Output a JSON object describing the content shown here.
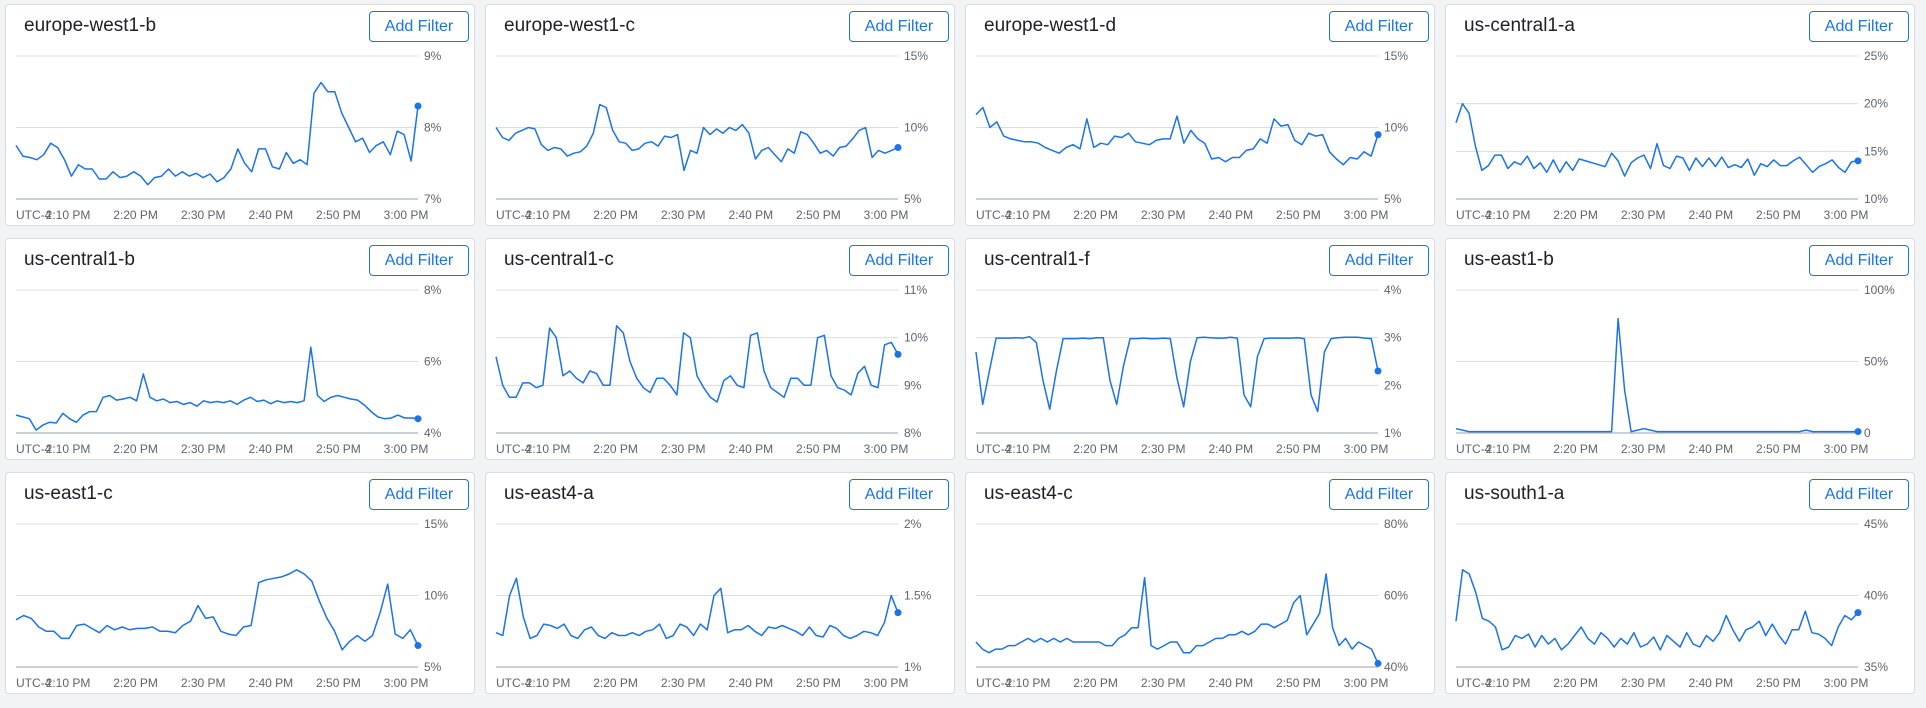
{
  "colors": {
    "series": "#1a73e8",
    "grid": "#dadce0",
    "axis": "#9aa0a6",
    "label": "#5f6368"
  },
  "filter_button_label": "Add Filter",
  "timezone_label": "UTC-4",
  "chart_data": [
    {
      "type": "line",
      "title": "europe-west1-b",
      "y_ticks": [
        "9%",
        "8%",
        "7%"
      ],
      "ylim": [
        7,
        9
      ],
      "x_ticks": [
        "2:10 PM",
        "2:20 PM",
        "2:30 PM",
        "2:40 PM",
        "2:50 PM",
        "3:00 PM"
      ],
      "values": [
        7.75,
        7.6,
        7.58,
        7.55,
        7.62,
        7.78,
        7.72,
        7.55,
        7.32,
        7.48,
        7.42,
        7.42,
        7.28,
        7.28,
        7.38,
        7.3,
        7.32,
        7.38,
        7.32,
        7.2,
        7.3,
        7.32,
        7.42,
        7.32,
        7.38,
        7.32,
        7.36,
        7.3,
        7.35,
        7.24,
        7.3,
        7.42,
        7.7,
        7.5,
        7.38,
        7.7,
        7.7,
        7.45,
        7.42,
        7.65,
        7.5,
        7.55,
        7.48,
        8.48,
        8.63,
        8.5,
        8.5,
        8.2,
        8.0,
        7.8,
        7.85,
        7.65,
        7.75,
        7.8,
        7.62,
        7.95,
        7.9,
        7.53,
        8.3
      ]
    },
    {
      "type": "line",
      "title": "europe-west1-c",
      "y_ticks": [
        "15%",
        "10%",
        "5%"
      ],
      "ylim": [
        5,
        15
      ],
      "x_ticks": [
        "2:10 PM",
        "2:20 PM",
        "2:30 PM",
        "2:40 PM",
        "2:50 PM",
        "3:00 PM"
      ],
      "values": [
        10.0,
        9.3,
        9.1,
        9.6,
        9.8,
        10.0,
        9.9,
        8.8,
        8.4,
        8.6,
        8.5,
        8.0,
        8.2,
        8.3,
        8.7,
        9.6,
        11.6,
        11.4,
        9.8,
        9.0,
        8.9,
        8.4,
        8.5,
        8.9,
        9.0,
        8.7,
        9.4,
        9.3,
        9.5,
        7.0,
        8.4,
        8.2,
        10.0,
        9.5,
        9.9,
        9.6,
        10.0,
        9.8,
        10.2,
        9.6,
        7.8,
        8.4,
        8.6,
        8.1,
        7.6,
        8.5,
        8.2,
        9.7,
        9.5,
        8.9,
        8.2,
        8.4,
        8.0,
        8.6,
        8.7,
        9.2,
        9.8,
        10.0,
        7.9,
        8.4,
        8.2,
        8.4,
        8.6
      ]
    },
    {
      "type": "line",
      "title": "europe-west1-d",
      "y_ticks": [
        "15%",
        "10%",
        "5%"
      ],
      "ylim": [
        5,
        15
      ],
      "x_ticks": [
        "2:10 PM",
        "2:20 PM",
        "2:30 PM",
        "2:40 PM",
        "2:50 PM",
        "3:00 PM"
      ],
      "values": [
        10.9,
        11.4,
        10.0,
        10.4,
        9.4,
        9.2,
        9.1,
        9.0,
        9.0,
        8.9,
        8.6,
        8.4,
        8.2,
        8.6,
        8.8,
        8.5,
        10.6,
        8.6,
        8.9,
        8.8,
        9.4,
        9.3,
        9.6,
        9.0,
        8.9,
        8.8,
        9.1,
        9.2,
        9.2,
        10.8,
        8.9,
        9.8,
        9.2,
        8.9,
        7.8,
        7.9,
        7.6,
        7.9,
        7.9,
        8.4,
        8.5,
        9.2,
        8.9,
        10.6,
        10.1,
        10.2,
        9.1,
        8.8,
        9.6,
        9.4,
        9.5,
        8.3,
        7.8,
        7.4,
        7.9,
        7.8,
        8.3,
        8.0,
        9.5
      ]
    },
    {
      "type": "line",
      "title": "us-central1-a",
      "y_ticks": [
        "25%",
        "20%",
        "15%",
        "10%"
      ],
      "ylim": [
        10,
        25
      ],
      "x_ticks": [
        "2:10 PM",
        "2:20 PM",
        "2:30 PM",
        "2:40 PM",
        "2:50 PM",
        "3:00 PM"
      ],
      "values": [
        18.0,
        20.0,
        19.0,
        15.5,
        13.0,
        13.5,
        14.6,
        14.6,
        13.2,
        13.9,
        13.6,
        14.5,
        13.2,
        13.8,
        12.8,
        14.1,
        12.8,
        13.9,
        13.0,
        14.2,
        14.0,
        13.8,
        13.6,
        13.4,
        14.8,
        14.0,
        12.4,
        13.8,
        14.3,
        14.6,
        13.2,
        15.8,
        13.5,
        13.2,
        14.5,
        14.3,
        13.0,
        14.3,
        13.4,
        14.3,
        13.4,
        14.4,
        13.3,
        13.6,
        13.3,
        14.2,
        12.5,
        13.7,
        13.4,
        14.1,
        13.5,
        13.5,
        14.0,
        14.4,
        13.6,
        12.8,
        13.4,
        13.7,
        14.1,
        13.3,
        12.8,
        13.9,
        14.0
      ]
    },
    {
      "type": "line",
      "title": "us-central1-b",
      "y_ticks": [
        "8%",
        "6%",
        "4%"
      ],
      "ylim": [
        4,
        8
      ],
      "x_ticks": [
        "2:10 PM",
        "2:20 PM",
        "2:30 PM",
        "2:40 PM",
        "2:50 PM",
        "3:00 PM"
      ],
      "values": [
        4.5,
        4.45,
        4.4,
        4.08,
        4.22,
        4.3,
        4.28,
        4.55,
        4.4,
        4.3,
        4.5,
        4.6,
        4.6,
        5.0,
        5.05,
        4.92,
        4.95,
        5.0,
        4.9,
        5.65,
        5.0,
        4.9,
        4.95,
        4.85,
        4.88,
        4.8,
        4.85,
        4.75,
        4.9,
        4.85,
        4.88,
        4.85,
        4.9,
        4.8,
        4.92,
        5.0,
        4.88,
        4.92,
        4.82,
        4.9,
        4.85,
        4.88,
        4.85,
        4.9,
        6.4,
        5.05,
        4.88,
        5.0,
        5.05,
        5.0,
        4.95,
        4.92,
        4.78,
        4.6,
        4.45,
        4.4,
        4.42,
        4.5,
        4.42,
        4.42,
        4.4
      ]
    },
    {
      "type": "line",
      "title": "us-central1-c",
      "y_ticks": [
        "11%",
        "10%",
        "9%",
        "8%"
      ],
      "ylim": [
        8,
        11
      ],
      "x_ticks": [
        "2:10 PM",
        "2:20 PM",
        "2:30 PM",
        "2:40 PM",
        "2:50 PM",
        "3:00 PM"
      ],
      "values": [
        9.6,
        9.0,
        8.75,
        8.75,
        9.05,
        9.05,
        8.95,
        9.0,
        10.2,
        10.0,
        9.2,
        9.3,
        9.15,
        9.05,
        9.3,
        9.25,
        9.0,
        9.0,
        10.25,
        10.1,
        9.5,
        9.15,
        8.95,
        8.85,
        9.15,
        9.15,
        9.0,
        8.8,
        10.1,
        10.0,
        9.2,
        8.95,
        8.75,
        8.65,
        9.1,
        9.2,
        9.0,
        8.95,
        10.05,
        10.1,
        9.3,
        8.95,
        8.85,
        8.75,
        9.15,
        9.15,
        9.0,
        9.0,
        10.0,
        10.05,
        9.2,
        8.95,
        8.9,
        8.8,
        9.25,
        9.4,
        9.0,
        8.95,
        9.85,
        9.9,
        9.65
      ]
    },
    {
      "type": "line",
      "title": "us-central1-f",
      "y_ticks": [
        "4%",
        "3%",
        "2%",
        "1%"
      ],
      "ylim": [
        1,
        4
      ],
      "x_ticks": [
        "2:10 PM",
        "2:20 PM",
        "2:30 PM",
        "2:40 PM",
        "2:50 PM",
        "3:00 PM"
      ],
      "values": [
        2.7,
        1.6,
        2.3,
        2.99,
        2.99,
        2.99,
        3.0,
        2.99,
        3.02,
        2.9,
        2.1,
        1.5,
        2.3,
        2.98,
        2.98,
        2.98,
        2.99,
        2.98,
        3.0,
        3.0,
        2.1,
        1.6,
        2.4,
        2.98,
        2.98,
        2.99,
        2.98,
        2.98,
        2.99,
        2.98,
        2.15,
        1.55,
        2.5,
        3.0,
        3.01,
        3.0,
        2.99,
        2.99,
        3.01,
        2.99,
        1.8,
        1.55,
        2.6,
        2.98,
        2.99,
        2.99,
        2.99,
        2.99,
        3.0,
        2.98,
        1.8,
        1.45,
        2.7,
        2.98,
        3.0,
        3.01,
        3.01,
        3.01,
        2.99,
        2.98,
        2.3
      ]
    },
    {
      "type": "line",
      "title": "us-east1-b",
      "y_ticks": [
        "100%",
        "50%",
        "0"
      ],
      "ylim": [
        0,
        100
      ],
      "x_ticks": [
        "2:10 PM",
        "2:20 PM",
        "2:30 PM",
        "2:40 PM",
        "2:50 PM",
        "3:00 PM"
      ],
      "values": [
        3,
        2,
        1,
        1,
        1,
        1,
        1,
        1,
        1,
        1,
        1,
        1,
        1,
        1,
        1,
        1,
        1,
        1,
        1,
        1,
        1,
        1,
        1,
        1,
        1,
        80,
        30,
        1,
        2,
        3,
        2,
        1,
        1,
        1,
        1,
        1,
        1,
        1,
        1,
        1,
        1,
        1,
        1,
        1,
        1,
        1,
        1,
        1,
        1,
        1,
        1,
        1,
        1,
        1,
        2,
        1,
        1,
        1,
        1,
        1,
        1,
        1,
        1
      ]
    },
    {
      "type": "line",
      "title": "us-east1-c",
      "y_ticks": [
        "15%",
        "10%",
        "5%"
      ],
      "ylim": [
        5,
        15
      ],
      "x_ticks": [
        "2:10 PM",
        "2:20 PM",
        "2:30 PM",
        "2:40 PM",
        "2:50 PM",
        "3:00 PM"
      ],
      "values": [
        8.3,
        8.6,
        8.4,
        7.8,
        7.5,
        7.5,
        7.0,
        7.0,
        7.9,
        8.0,
        7.7,
        7.4,
        7.9,
        7.6,
        7.8,
        7.6,
        7.7,
        7.7,
        7.8,
        7.5,
        7.5,
        7.4,
        7.9,
        8.2,
        9.3,
        8.4,
        8.5,
        7.5,
        7.3,
        7.2,
        7.8,
        7.9,
        10.9,
        11.1,
        11.2,
        11.3,
        11.5,
        11.8,
        11.5,
        11.0,
        9.6,
        8.4,
        7.5,
        6.2,
        6.8,
        7.2,
        6.8,
        7.2,
        8.8,
        10.8,
        7.3,
        7.0,
        7.6,
        6.5
      ]
    },
    {
      "type": "line",
      "title": "us-east4-a",
      "y_ticks": [
        "2%",
        "1.5%",
        "1%"
      ],
      "ylim": [
        1,
        2
      ],
      "x_ticks": [
        "2:10 PM",
        "2:20 PM",
        "2:30 PM",
        "2:40 PM",
        "2:50 PM",
        "3:00 PM"
      ],
      "values": [
        1.24,
        1.22,
        1.5,
        1.62,
        1.35,
        1.2,
        1.22,
        1.3,
        1.29,
        1.27,
        1.3,
        1.22,
        1.2,
        1.26,
        1.28,
        1.22,
        1.2,
        1.24,
        1.22,
        1.22,
        1.24,
        1.22,
        1.25,
        1.26,
        1.3,
        1.2,
        1.22,
        1.3,
        1.28,
        1.22,
        1.3,
        1.26,
        1.5,
        1.55,
        1.24,
        1.26,
        1.26,
        1.29,
        1.25,
        1.22,
        1.28,
        1.27,
        1.29,
        1.27,
        1.25,
        1.22,
        1.28,
        1.22,
        1.21,
        1.29,
        1.27,
        1.22,
        1.2,
        1.22,
        1.25,
        1.24,
        1.22,
        1.31,
        1.5,
        1.38
      ]
    },
    {
      "type": "line",
      "title": "us-east4-c",
      "y_ticks": [
        "80%",
        "60%",
        "40%"
      ],
      "ylim": [
        40,
        80
      ],
      "x_ticks": [
        "2:10 PM",
        "2:20 PM",
        "2:30 PM",
        "2:40 PM",
        "2:50 PM",
        "3:00 PM"
      ],
      "values": [
        47,
        45,
        44,
        45,
        45,
        46,
        46,
        47,
        48,
        47,
        48,
        47,
        48,
        47,
        48,
        47,
        47,
        47,
        47,
        47,
        46,
        46,
        48,
        49,
        51,
        51,
        65,
        46,
        45,
        46,
        47,
        47,
        44,
        44,
        46,
        46,
        47,
        48,
        48,
        49,
        49,
        50,
        49,
        50,
        52,
        52,
        51,
        52,
        53,
        58,
        60,
        49,
        52,
        55,
        66,
        51,
        46,
        48,
        45,
        47,
        46,
        45,
        41
      ]
    },
    {
      "type": "line",
      "title": "us-south1-a",
      "y_ticks": [
        "45%",
        "40%",
        "35%"
      ],
      "ylim": [
        35,
        45
      ],
      "x_ticks": [
        "2:10 PM",
        "2:20 PM",
        "2:30 PM",
        "2:40 PM",
        "2:50 PM",
        "3:00 PM"
      ],
      "values": [
        38.2,
        41.8,
        41.5,
        40.2,
        38.4,
        38.2,
        37.8,
        36.2,
        36.4,
        37.2,
        37.0,
        37.3,
        36.4,
        37.2,
        36.6,
        37.0,
        36.2,
        36.6,
        37.2,
        37.8,
        37.0,
        36.6,
        37.4,
        37.0,
        36.4,
        37.0,
        36.6,
        37.4,
        36.4,
        36.6,
        37.1,
        36.2,
        37.2,
        36.8,
        36.4,
        37.4,
        36.6,
        36.4,
        37.2,
        36.8,
        37.4,
        38.6,
        37.6,
        36.8,
        37.6,
        37.8,
        38.2,
        37.2,
        38.0,
        37.2,
        36.6,
        37.6,
        37.6,
        38.9,
        37.4,
        37.3,
        37.0,
        36.5,
        37.8,
        38.6,
        38.3,
        38.8
      ]
    }
  ]
}
